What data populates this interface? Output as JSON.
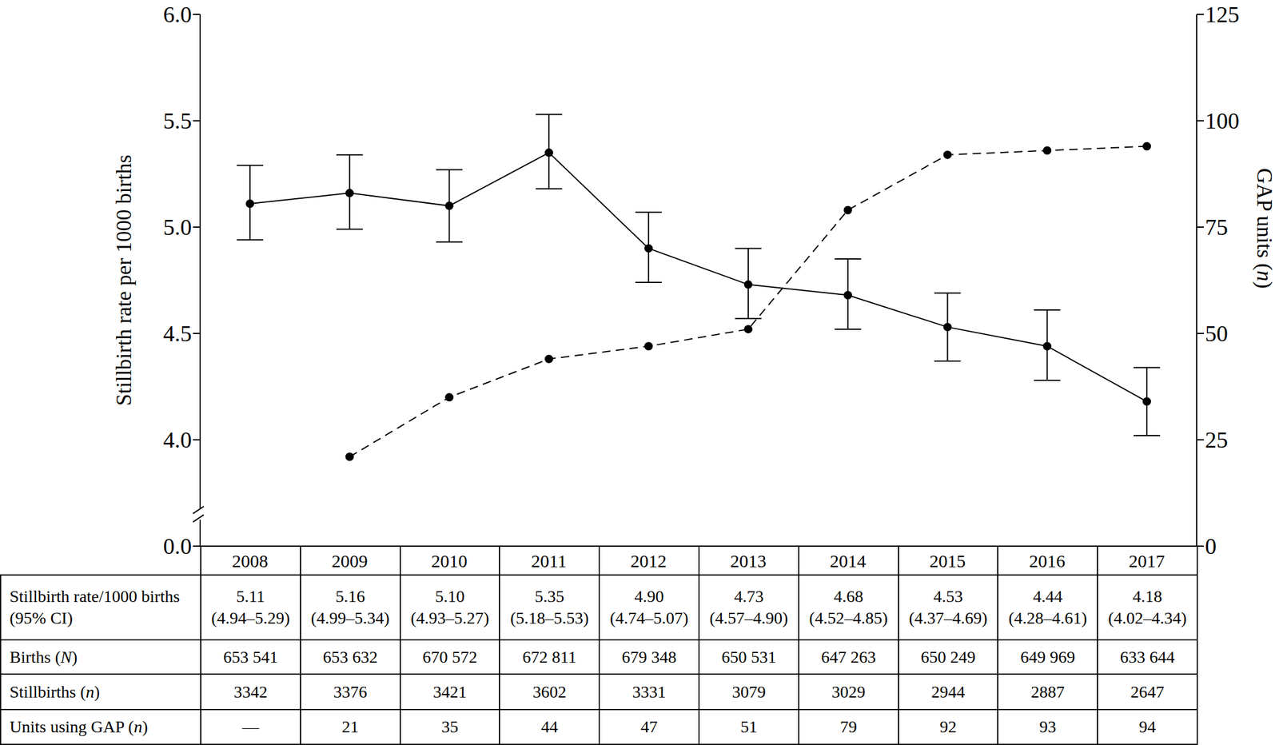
{
  "chart_data": {
    "type": "line",
    "y_label": "Stillbirth rate per 1000 births",
    "y2_label": "GAP units (n)",
    "categories": [
      "2008",
      "2009",
      "2010",
      "2011",
      "2012",
      "2013",
      "2014",
      "2015",
      "2016",
      "2017"
    ],
    "ylim": [
      0,
      6
    ],
    "yticks": [
      {
        "value": 0,
        "label": "0.0"
      },
      {
        "value": 4,
        "label": "4.0"
      },
      {
        "value": 4.5,
        "label": "4.5"
      },
      {
        "value": 5,
        "label": "5.0"
      },
      {
        "value": 5.5,
        "label": "5.5"
      },
      {
        "value": 6,
        "label": "6.0"
      }
    ],
    "y2lim": [
      0,
      125
    ],
    "y2ticks": [
      0,
      25,
      50,
      75,
      100,
      125
    ],
    "grid": false,
    "series": [
      {
        "name": "Stillbirth rate/1000 births (95% CI)",
        "color": "#000000",
        "line_style": "solid",
        "marker": "circle",
        "values": [
          5.11,
          5.16,
          5.1,
          5.35,
          4.9,
          4.73,
          4.68,
          4.53,
          4.44,
          4.18
        ],
        "value_labels": [
          "5.11",
          "5.16",
          "5.10",
          "5.35",
          "4.90",
          "4.73",
          "4.68",
          "4.53",
          "4.44",
          "4.18"
        ],
        "ci": [
          [
            4.94,
            5.29
          ],
          [
            4.99,
            5.34
          ],
          [
            4.93,
            5.27
          ],
          [
            5.18,
            5.53
          ],
          [
            4.74,
            5.07
          ],
          [
            4.57,
            4.9
          ],
          [
            4.52,
            4.85
          ],
          [
            4.37,
            4.69
          ],
          [
            4.28,
            4.61
          ],
          [
            4.02,
            4.34
          ]
        ],
        "ci_labels": [
          "(4.94–5.29)",
          "(4.99–5.34)",
          "(4.93–5.27)",
          "(5.18–5.53)",
          "(4.74–5.07)",
          "(4.57–4.90)",
          "(4.52–4.85)",
          "(4.37–4.69)",
          "(4.28–4.61)",
          "(4.02–4.34)"
        ]
      },
      {
        "name": "Units using GAP (n)",
        "axis": "y2",
        "color": "#000000",
        "line_style": "dashed",
        "marker": "circle",
        "values": [
          null,
          21,
          35,
          44,
          47,
          51,
          79,
          92,
          93,
          94
        ],
        "value_labels": [
          "—",
          "21",
          "35",
          "44",
          "47",
          "51",
          "79",
          "92",
          "93",
          "94"
        ]
      }
    ],
    "table": {
      "rows": [
        {
          "label": "Births (N)",
          "values": [
            "653 541",
            "653 632",
            "670 572",
            "672 811",
            "679 348",
            "650 531",
            "647 263",
            "650 249",
            "649 969",
            "633 644"
          ]
        },
        {
          "label": "Stillbirths (n)",
          "values": [
            "3342",
            "3376",
            "3421",
            "3602",
            "3331",
            "3079",
            "3029",
            "2944",
            "2887",
            "2647"
          ]
        }
      ]
    }
  }
}
